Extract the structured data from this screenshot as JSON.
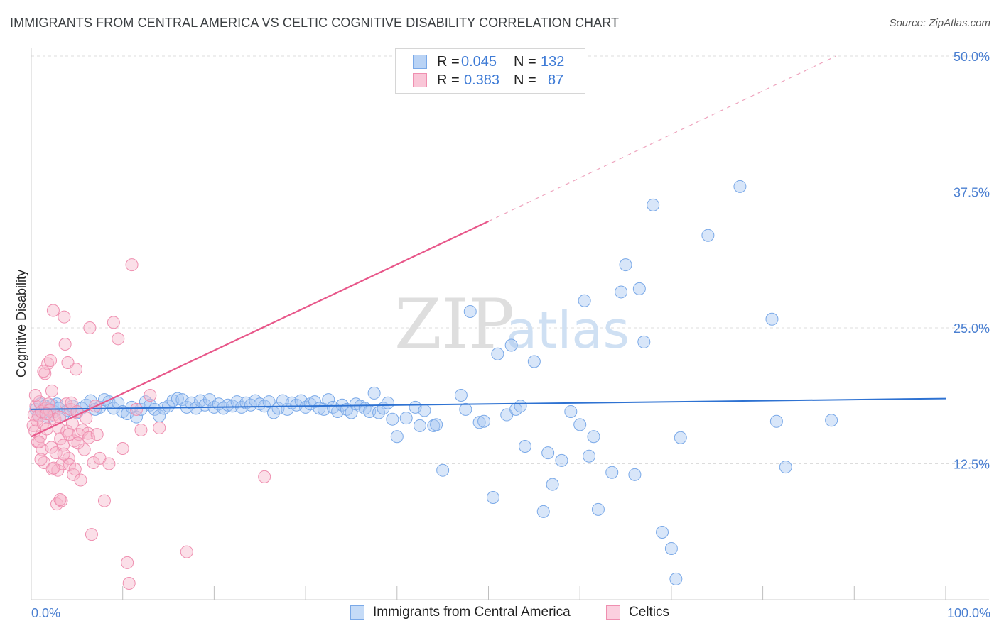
{
  "title": "IMMIGRANTS FROM CENTRAL AMERICA VS CELTIC COGNITIVE DISABILITY CORRELATION CHART",
  "source": "Source: ZipAtlas.com",
  "watermark": {
    "zip": "ZIP",
    "atlas": "atlas"
  },
  "legend": {
    "rows": [
      {
        "r_label": "R =",
        "r_value": "0.045",
        "n_label": "N =",
        "n_value": "132",
        "color": "#7aa9e8",
        "fill": "#b9d3f5"
      },
      {
        "r_label": "R =",
        "r_value": "0.383",
        "n_label": "N =",
        "n_value": "87",
        "color": "#ef8fb0",
        "fill": "#f9c6d7"
      }
    ]
  },
  "bottom_legend": [
    {
      "label": "Immigrants from Central America",
      "color": "#7aa9e8",
      "fill": "#c5dbf7"
    },
    {
      "label": "Celtics",
      "color": "#ef8fb0",
      "fill": "#fbd0df"
    }
  ],
  "colors": {
    "blue": "#2e72d2",
    "pink": "#e8578a",
    "grid": "#dcdcdc",
    "tick_text": "#4a7fd1"
  },
  "chart_data": {
    "type": "scatter",
    "title": "IMMIGRANTS FROM CENTRAL AMERICA VS CELTIC COGNITIVE DISABILITY CORRELATION CHART",
    "xlabel": "",
    "ylabel": "Cognitive Disability",
    "xlim": [
      0,
      100
    ],
    "ylim": [
      0,
      50
    ],
    "x_tick_labels": [
      "0.0%",
      "100.0%"
    ],
    "y_ticks": [
      12.5,
      25.0,
      37.5,
      50.0
    ],
    "y_tick_labels": [
      "12.5%",
      "25.0%",
      "37.5%",
      "50.0%"
    ],
    "grid": "horizontal dashed",
    "legend_position": "top-center",
    "series": [
      {
        "name": "Immigrants from Central America",
        "color": "#7aa9e8",
        "trend": {
          "x": [
            0,
            100
          ],
          "y": [
            17.5,
            18.5
          ],
          "style": "solid"
        },
        "points": [
          [
            0.5,
            17.5
          ],
          [
            0.8,
            17.0
          ],
          [
            1.0,
            18.0
          ],
          [
            1.3,
            17.2
          ],
          [
            1.5,
            17.8
          ],
          [
            1.8,
            16.8
          ],
          [
            2.0,
            17.5
          ],
          [
            2.3,
            17.9
          ],
          [
            2.5,
            17.3
          ],
          [
            2.8,
            18.0
          ],
          [
            3.0,
            17.6
          ],
          [
            3.5,
            17.0
          ],
          [
            4.0,
            17.4
          ],
          [
            4.5,
            17.8
          ],
          [
            5.0,
            17.2
          ],
          [
            5.5,
            17.6
          ],
          [
            6.0,
            17.9
          ],
          [
            6.5,
            18.3
          ],
          [
            7.0,
            17.5
          ],
          [
            7.5,
            17.7
          ],
          [
            8.0,
            18.4
          ],
          [
            8.5,
            18.2
          ],
          [
            9.0,
            17.6
          ],
          [
            9.5,
            18.1
          ],
          [
            10.0,
            17.3
          ],
          [
            10.5,
            17.1
          ],
          [
            11.0,
            17.7
          ],
          [
            11.5,
            16.8
          ],
          [
            12.0,
            17.5
          ],
          [
            12.5,
            18.2
          ],
          [
            13.0,
            17.9
          ],
          [
            13.5,
            17.5
          ],
          [
            14.0,
            16.9
          ],
          [
            14.5,
            17.6
          ],
          [
            15.0,
            17.8
          ],
          [
            15.5,
            18.3
          ],
          [
            16.0,
            18.5
          ],
          [
            16.5,
            18.4
          ],
          [
            17.0,
            17.7
          ],
          [
            17.5,
            18.1
          ],
          [
            18.0,
            17.6
          ],
          [
            18.5,
            18.3
          ],
          [
            19.0,
            17.9
          ],
          [
            19.5,
            18.4
          ],
          [
            20.0,
            17.7
          ],
          [
            20.5,
            18.0
          ],
          [
            21.0,
            17.6
          ],
          [
            21.5,
            17.9
          ],
          [
            22.0,
            17.8
          ],
          [
            22.5,
            18.2
          ],
          [
            23.0,
            17.7
          ],
          [
            23.5,
            18.1
          ],
          [
            24.0,
            17.9
          ],
          [
            24.5,
            18.3
          ],
          [
            25.0,
            18.0
          ],
          [
            25.5,
            17.8
          ],
          [
            26.0,
            18.2
          ],
          [
            26.5,
            17.2
          ],
          [
            27.0,
            17.6
          ],
          [
            27.5,
            18.3
          ],
          [
            28.0,
            17.5
          ],
          [
            28.5,
            18.1
          ],
          [
            29.0,
            17.9
          ],
          [
            29.5,
            18.3
          ],
          [
            30.0,
            17.7
          ],
          [
            30.5,
            18.0
          ],
          [
            31.0,
            18.2
          ],
          [
            31.5,
            17.6
          ],
          [
            32.0,
            17.5
          ],
          [
            32.5,
            18.4
          ],
          [
            33.0,
            17.7
          ],
          [
            33.5,
            17.3
          ],
          [
            34.0,
            17.9
          ],
          [
            34.5,
            17.5
          ],
          [
            35.0,
            17.2
          ],
          [
            35.5,
            18.0
          ],
          [
            36.0,
            17.8
          ],
          [
            36.5,
            17.6
          ],
          [
            37.0,
            17.3
          ],
          [
            37.5,
            19.0
          ],
          [
            38.0,
            17.2
          ],
          [
            38.5,
            17.6
          ],
          [
            39.0,
            18.1
          ],
          [
            39.5,
            16.6
          ],
          [
            40.0,
            15.0
          ],
          [
            41.0,
            16.7
          ],
          [
            42.0,
            17.7
          ],
          [
            42.5,
            16.0
          ],
          [
            43.0,
            17.4
          ],
          [
            44.0,
            16.0
          ],
          [
            44.3,
            16.1
          ],
          [
            45.0,
            11.9
          ],
          [
            47.0,
            18.8
          ],
          [
            48.0,
            26.5
          ],
          [
            49.0,
            16.3
          ],
          [
            49.5,
            16.4
          ],
          [
            50.5,
            9.4
          ],
          [
            51.0,
            22.6
          ],
          [
            52.0,
            17.0
          ],
          [
            52.5,
            23.4
          ],
          [
            53.0,
            17.5
          ],
          [
            53.5,
            17.8
          ],
          [
            54.0,
            14.1
          ],
          [
            55.0,
            21.9
          ],
          [
            56.0,
            8.1
          ],
          [
            56.5,
            13.5
          ],
          [
            57.0,
            10.6
          ],
          [
            58.0,
            12.8
          ],
          [
            59.0,
            17.3
          ],
          [
            60.0,
            16.1
          ],
          [
            60.5,
            27.5
          ],
          [
            61.0,
            13.2
          ],
          [
            61.5,
            15.0
          ],
          [
            62.0,
            8.3
          ],
          [
            63.5,
            11.7
          ],
          [
            64.5,
            28.3
          ],
          [
            65.0,
            30.8
          ],
          [
            66.0,
            11.5
          ],
          [
            66.5,
            28.6
          ],
          [
            67.0,
            23.7
          ],
          [
            68.0,
            36.3
          ],
          [
            69.0,
            6.2
          ],
          [
            70.0,
            4.7
          ],
          [
            70.5,
            1.9
          ],
          [
            71.0,
            14.9
          ],
          [
            74.0,
            33.5
          ],
          [
            77.5,
            38.0
          ],
          [
            81.0,
            25.8
          ],
          [
            81.5,
            16.4
          ],
          [
            82.5,
            12.2
          ],
          [
            87.5,
            16.5
          ],
          [
            47.5,
            17.5
          ]
        ]
      },
      {
        "name": "Celtics",
        "color": "#ef8fb0",
        "trend": {
          "x": [
            0,
            50
          ],
          "y": [
            15.0,
            34.8
          ],
          "dashed_to": {
            "x": 88,
            "y": 50.0
          }
        },
        "points": [
          [
            0.2,
            16.0
          ],
          [
            0.3,
            17.0
          ],
          [
            0.4,
            15.5
          ],
          [
            0.5,
            17.8
          ],
          [
            0.6,
            16.5
          ],
          [
            0.7,
            14.5
          ],
          [
            0.8,
            16.9
          ],
          [
            0.9,
            18.2
          ],
          [
            1.0,
            15.0
          ],
          [
            1.1,
            17.3
          ],
          [
            1.2,
            13.8
          ],
          [
            1.3,
            16.2
          ],
          [
            1.4,
            12.6
          ],
          [
            1.5,
            20.8
          ],
          [
            1.6,
            17.6
          ],
          [
            1.7,
            15.7
          ],
          [
            1.8,
            21.7
          ],
          [
            1.9,
            18.0
          ],
          [
            2.0,
            17.4
          ],
          [
            2.1,
            22.0
          ],
          [
            2.2,
            14.0
          ],
          [
            2.3,
            12.0
          ],
          [
            2.4,
            26.6
          ],
          [
            2.5,
            17.0
          ],
          [
            2.6,
            16.6
          ],
          [
            2.7,
            13.5
          ],
          [
            2.8,
            8.8
          ],
          [
            2.9,
            11.9
          ],
          [
            3.0,
            15.8
          ],
          [
            3.1,
            16.8
          ],
          [
            3.2,
            14.8
          ],
          [
            3.3,
            9.1
          ],
          [
            3.4,
            12.5
          ],
          [
            3.5,
            14.2
          ],
          [
            3.6,
            26.0
          ],
          [
            3.7,
            23.5
          ],
          [
            3.8,
            18.0
          ],
          [
            3.9,
            15.5
          ],
          [
            4.0,
            21.8
          ],
          [
            4.1,
            13.0
          ],
          [
            4.2,
            12.4
          ],
          [
            4.3,
            17.5
          ],
          [
            4.4,
            18.1
          ],
          [
            4.5,
            16.2
          ],
          [
            4.6,
            11.5
          ],
          [
            4.7,
            14.6
          ],
          [
            4.8,
            12.0
          ],
          [
            4.9,
            21.2
          ],
          [
            5.0,
            17.3
          ],
          [
            5.2,
            15.2
          ],
          [
            5.4,
            11.0
          ],
          [
            5.6,
            15.6
          ],
          [
            5.8,
            13.8
          ],
          [
            6.0,
            16.7
          ],
          [
            6.2,
            15.3
          ],
          [
            6.4,
            25.0
          ],
          [
            6.6,
            6.0
          ],
          [
            6.8,
            12.6
          ],
          [
            7.0,
            17.8
          ],
          [
            7.5,
            13.0
          ],
          [
            8.0,
            9.1
          ],
          [
            8.5,
            12.5
          ],
          [
            9.0,
            25.5
          ],
          [
            9.5,
            24.0
          ],
          [
            10.0,
            13.9
          ],
          [
            10.5,
            3.4
          ],
          [
            10.7,
            1.5
          ],
          [
            11.0,
            30.8
          ],
          [
            11.5,
            17.5
          ],
          [
            12.0,
            15.6
          ],
          [
            13.0,
            18.8
          ],
          [
            14.0,
            15.8
          ],
          [
            17.0,
            4.4
          ],
          [
            25.5,
            11.3
          ],
          [
            1.35,
            21.0
          ],
          [
            0.45,
            18.8
          ],
          [
            2.45,
            12.1
          ],
          [
            3.15,
            9.2
          ],
          [
            3.55,
            13.4
          ],
          [
            0.85,
            14.5
          ],
          [
            1.65,
            17.1
          ],
          [
            2.25,
            19.2
          ],
          [
            5.1,
            14.4
          ],
          [
            6.3,
            14.9
          ],
          [
            7.2,
            15.2
          ],
          [
            1.05,
            12.9
          ],
          [
            4.15,
            15.2
          ]
        ]
      }
    ]
  }
}
